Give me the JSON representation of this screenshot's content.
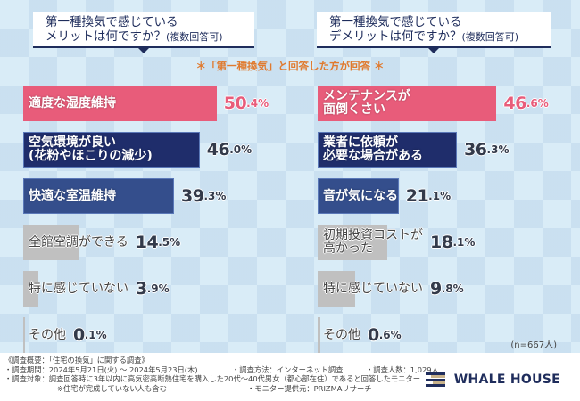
{
  "note": "＊「第一種換気」と回答した方が回答 ＊",
  "sample_size": "(n=667人)",
  "colors": {
    "pink": "#e85c7a",
    "navy": "#1f2d6b",
    "blue": "#344e8c",
    "gray": "#c0c0c0",
    "note_orange": "#e07a2e"
  },
  "chart_data": [
    {
      "type": "bar",
      "orientation": "horizontal",
      "title_line1": "第一種換気で感じている",
      "title_line2": "メリットは何ですか？",
      "title_suffix": "(複数回答可)",
      "categories": [
        "適度な湿度維持",
        "空気環境が良い\n(花粉やほこりの減少)",
        "快適な室温維持",
        "全館空調ができる",
        "特に感じていない",
        "その他"
      ],
      "labels": [
        [
          "適度な湿度維持"
        ],
        [
          "空気環境が良い",
          "(花粉やほこりの減少)"
        ],
        [
          "快適な室温維持"
        ],
        [
          "全館空調ができる"
        ],
        [
          "特に感じていない"
        ],
        [
          "その他"
        ]
      ],
      "values": [
        50.4,
        46.0,
        39.3,
        14.5,
        3.9,
        0.1
      ],
      "value_labels": [
        "50.4%",
        "46.0%",
        "39.3%",
        "14.5%",
        "3.9%",
        "0.1%"
      ],
      "bar_colors": [
        "pink",
        "navy",
        "blue",
        "gray",
        "gray",
        "gray"
      ],
      "unit": "%"
    },
    {
      "type": "bar",
      "orientation": "horizontal",
      "title_line1": "第一種換気で感じている",
      "title_line2": "デメリットは何ですか？",
      "title_suffix": "(複数回答可)",
      "categories": [
        "メンテナンスが面倒くさい",
        "業者に依頼が必要な場合がある",
        "音が気になる",
        "初期投資コストが高かった",
        "特に感じていない",
        "その他"
      ],
      "labels": [
        [
          "メンテナンスが",
          "面倒くさい"
        ],
        [
          "業者に依頼が",
          "必要な場合がある"
        ],
        [
          "音が気になる"
        ],
        [
          "初期投資コストが",
          "高かった"
        ],
        [
          "特に感じていない"
        ],
        [
          "その他"
        ]
      ],
      "values": [
        46.6,
        36.3,
        21.1,
        18.1,
        9.8,
        0.6
      ],
      "value_labels": [
        "46.6%",
        "36.3%",
        "21.1%",
        "18.1%",
        "9.8%",
        "0.6%"
      ],
      "bar_colors": [
        "pink",
        "navy",
        "blue",
        "gray",
        "gray",
        "gray"
      ],
      "unit": "%"
    }
  ],
  "footer": {
    "overview": "《調査概要：「住宅の換気」に関する調査》",
    "period": "・調査期間：2024年5月21日(火) ～ 2024年5月23日(木)",
    "method": "・調査方法：インターネット調査",
    "count": "・調査人数：1,029人",
    "target": "・調査対象：調査回答時に3年以内に高気密高断熱住宅を購入した20代～40代男女（都心部在住）であると回答したモニター",
    "target_note": "※住宅が完成していない人も含む",
    "provider": "・モニター提供元：PRIZMAリサーチ"
  },
  "logo": {
    "name": "WHALE HOUSE",
    "icon": "whale-house-stripes-icon"
  }
}
